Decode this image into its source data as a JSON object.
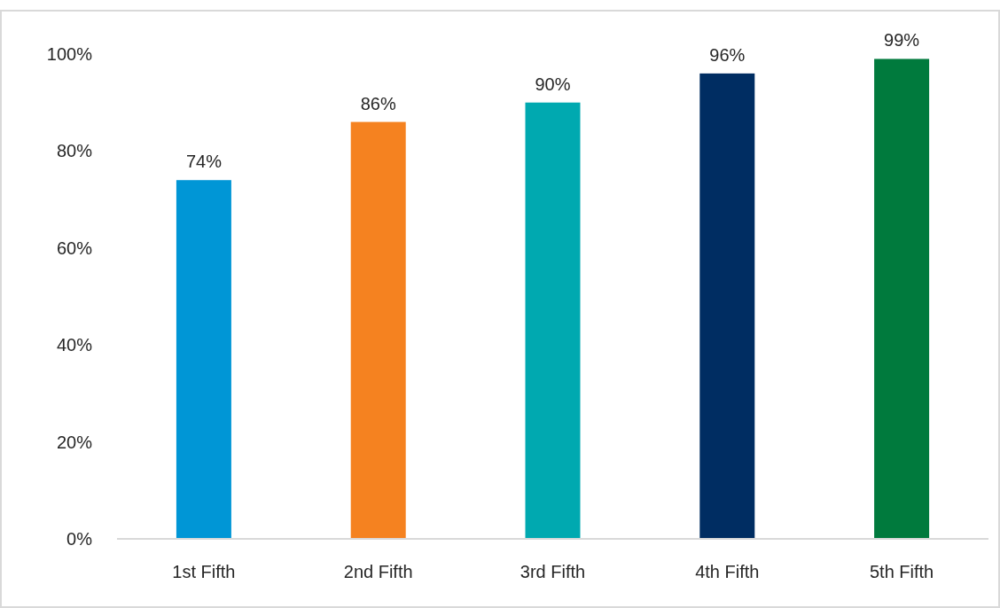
{
  "chart_data": {
    "type": "bar",
    "categories": [
      "1st Fifth",
      "2nd Fifth",
      "3rd Fifth",
      "4th Fifth",
      "5th Fifth"
    ],
    "values": [
      74,
      86,
      90,
      96,
      99
    ],
    "colors": [
      "#0096d6",
      "#f58220",
      "#00a9b0",
      "#002d62",
      "#007a3d"
    ],
    "value_labels": [
      "74%",
      "86%",
      "90%",
      "96%",
      "99%"
    ],
    "ylim": [
      0,
      100
    ],
    "yticks": [
      {
        "value": 0,
        "label": "0%"
      },
      {
        "value": 20,
        "label": "20%"
      },
      {
        "value": 40,
        "label": "40%"
      },
      {
        "value": 60,
        "label": "60%"
      },
      {
        "value": 80,
        "label": "80%"
      },
      {
        "value": 100,
        "label": "100%"
      }
    ],
    "grid": false
  }
}
